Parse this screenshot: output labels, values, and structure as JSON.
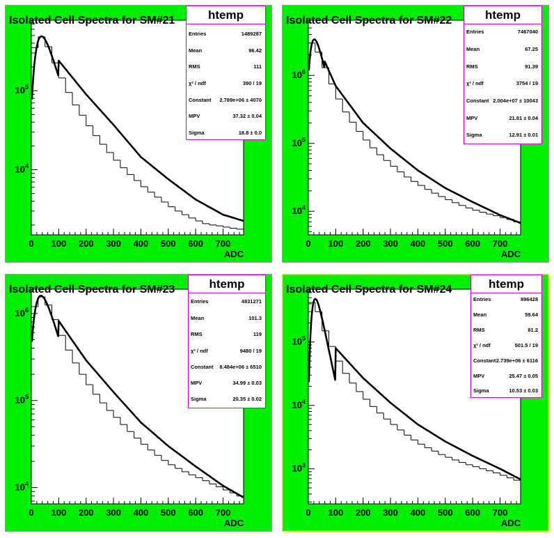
{
  "colors": {
    "pad_fill": "#00ee00",
    "stats_border": "#d000d0",
    "frame": "#000000",
    "highlight_border": "#e8e000"
  },
  "chart_data": [
    {
      "type": "histogram",
      "title": "Isolated Cell Spectra for SM#21",
      "xlabel": "ADC",
      "ylabel": "",
      "xlim": [
        0,
        775
      ],
      "ylim": [
        1500,
        780000
      ],
      "y_scale": "log",
      "x_ticks": [
        "0",
        "100",
        "200",
        "300",
        "400",
        "500",
        "600",
        "700"
      ],
      "y_tick_labels": [
        {
          "base": "10",
          "exp": "4",
          "value": 10000
        },
        {
          "base": "10",
          "exp": "5",
          "value": 100000
        }
      ],
      "bins": {
        "x0": 0,
        "width": 25,
        "values": [
          350000,
          480000,
          360000,
          225000,
          145000,
          95000,
          66000,
          49000,
          36000,
          27000,
          21000,
          16500,
          13200,
          10600,
          8700,
          7300,
          6100,
          5200,
          4500,
          3900,
          3400,
          3000,
          2700,
          2450,
          2250,
          2080,
          2000,
          1950,
          1880,
          1820,
          1770
        ]
      },
      "fit": {
        "name": "Landau",
        "mpv": 37.32,
        "sigma": 18.8,
        "amp": 488000,
        "tail": [
          [
            100,
            240000
          ],
          [
            200,
            90000
          ],
          [
            300,
            37000
          ],
          [
            400,
            14500
          ],
          [
            500,
            7600
          ],
          [
            600,
            4200
          ],
          [
            700,
            2700
          ],
          [
            775,
            2250
          ]
        ]
      },
      "stats": {
        "title": "htemp",
        "rows": [
          {
            "k": "Entries",
            "v": "1489287"
          },
          {
            "k": "Mean",
            "v": "96.42"
          },
          {
            "k": "RMS",
            "v": "111"
          },
          {
            "k": "χ² / ndf",
            "v": "390 / 19"
          },
          {
            "k": "Constant",
            "v": "2.789e+06 ± 4070"
          },
          {
            "k": "MPV",
            "v": "37.32 ± 0.04"
          },
          {
            "k": "Sigma",
            "v": "18.8 ± 0.0"
          }
        ]
      }
    },
    {
      "type": "histogram",
      "title": "Isolated Cell Spectra for SM#22",
      "xlabel": "ADC",
      "ylabel": "",
      "xlim": [
        0,
        775
      ],
      "ylim": [
        4500,
        6500000
      ],
      "y_scale": "log",
      "x_ticks": [
        "0",
        "100",
        "200",
        "300",
        "400",
        "500",
        "600",
        "700"
      ],
      "y_tick_labels": [
        {
          "base": "10",
          "exp": "4",
          "value": 10000
        },
        {
          "base": "10",
          "exp": "5",
          "value": 100000
        },
        {
          "base": "10",
          "exp": "6",
          "value": 1000000
        }
      ],
      "bins": {
        "x0": 0,
        "width": 25,
        "values": [
          3000000,
          2200000,
          1300000,
          750000,
          450000,
          290000,
          205000,
          150000,
          112000,
          86000,
          68000,
          56000,
          46000,
          38000,
          32000,
          27500,
          24000,
          21000,
          18500,
          16500,
          14800,
          13400,
          12200,
          11200,
          10400,
          9700,
          9100,
          8600,
          8100,
          7600,
          7000
        ]
      },
      "fit": {
        "name": "Landau",
        "mpv": 21.81,
        "sigma": 12.91,
        "amp": 3400000,
        "tail": [
          [
            60,
            1600000
          ],
          [
            100,
            700000
          ],
          [
            200,
            200000
          ],
          [
            300,
            84000
          ],
          [
            400,
            40000
          ],
          [
            500,
            22000
          ],
          [
            600,
            13700
          ],
          [
            700,
            8800
          ],
          [
            775,
            6700
          ]
        ]
      },
      "stats": {
        "title": "htemp",
        "rows": [
          {
            "k": "Entries",
            "v": "7467040"
          },
          {
            "k": "Mean",
            "v": "67.25"
          },
          {
            "k": "RMS",
            "v": "91.39"
          },
          {
            "k": "χ² / ndf",
            "v": "3754 / 19"
          },
          {
            "k": "Constant",
            "v": "2.004e+07 ± 10043"
          },
          {
            "k": "MPV",
            "v": "21.81 ± 0.04"
          },
          {
            "k": "Sigma",
            "v": "12.91 ± 0.01"
          }
        ]
      }
    },
    {
      "type": "histogram",
      "title": "Isolated Cell Spectra for SM#23",
      "xlabel": "ADC",
      "ylabel": "",
      "xlim": [
        0,
        775
      ],
      "ylim": [
        6500,
        1900000
      ],
      "y_scale": "log",
      "x_ticks": [
        "0",
        "100",
        "200",
        "300",
        "400",
        "500",
        "600",
        "700"
      ],
      "y_tick_labels": [
        {
          "base": "10",
          "exp": "4",
          "value": 10000
        },
        {
          "base": "10",
          "exp": "5",
          "value": 100000
        },
        {
          "base": "10",
          "exp": "6",
          "value": 1000000
        }
      ],
      "bins": {
        "x0": 0,
        "width": 25,
        "values": [
          1200000,
          1550000,
          1250000,
          850000,
          560000,
          380000,
          270000,
          200000,
          152000,
          118000,
          94000,
          77000,
          64000,
          53000,
          44000,
          37000,
          31500,
          27000,
          23500,
          20500,
          18300,
          16600,
          15200,
          14000,
          13000,
          12000,
          11000,
          10200,
          9400,
          8700,
          8000
        ]
      },
      "fit": {
        "name": "Landau",
        "mpv": 34.99,
        "sigma": 20.35,
        "amp": 1600000,
        "tail": [
          [
            100,
            820000
          ],
          [
            200,
            290000
          ],
          [
            300,
            125000
          ],
          [
            400,
            56000
          ],
          [
            500,
            30000
          ],
          [
            600,
            17500
          ],
          [
            700,
            10500
          ],
          [
            775,
            7700
          ]
        ]
      },
      "stats": {
        "title": "htemp",
        "rows": [
          {
            "k": "Entries",
            "v": "4831271"
          },
          {
            "k": "Mean",
            "v": "101.3"
          },
          {
            "k": "RMS",
            "v": "119"
          },
          {
            "k": "χ² / ndf",
            "v": "9480 / 19"
          },
          {
            "k": "Constant",
            "v": "8.484e+06 ± 6510"
          },
          {
            "k": "MPV",
            "v": "34.99 ± 0.03"
          },
          {
            "k": "Sigma",
            "v": "20.35 ± 0.02"
          }
        ]
      }
    },
    {
      "type": "histogram",
      "title": "Isolated Cell Spectra for SM#24",
      "xlabel": "ADC",
      "ylabel": "",
      "xlim": [
        0,
        775
      ],
      "ylim": [
        280,
        680000
      ],
      "y_scale": "log",
      "x_ticks": [
        "0",
        "100",
        "200",
        "300",
        "400",
        "500",
        "600",
        "700"
      ],
      "y_tick_labels": [
        {
          "base": "10",
          "exp": "3",
          "value": 1000
        },
        {
          "base": "10",
          "exp": "4",
          "value": 10000
        },
        {
          "base": "10",
          "exp": "5",
          "value": 100000
        }
      ],
      "bins": {
        "x0": 0,
        "width": 25,
        "values": [
          420000,
          300000,
          150000,
          85000,
          50000,
          32000,
          22500,
          16500,
          12500,
          9600,
          7600,
          6100,
          5000,
          4100,
          3400,
          2850,
          2450,
          2150,
          1900,
          1680,
          1520,
          1380,
          1260,
          1160,
          1080,
          1000,
          930,
          860,
          790,
          720,
          660
        ]
      },
      "fit": {
        "name": "Landau",
        "mpv": 25.47,
        "sigma": 10.53,
        "amp": 480000,
        "tail": [
          [
            100,
            80000
          ],
          [
            200,
            27000
          ],
          [
            300,
            11000
          ],
          [
            400,
            5000
          ],
          [
            500,
            2700
          ],
          [
            600,
            1600
          ],
          [
            700,
            1000
          ],
          [
            775,
            680
          ]
        ]
      },
      "stats": {
        "title": "htemp",
        "rows": [
          {
            "k": "Entries",
            "v": "896428"
          },
          {
            "k": "Mean",
            "v": "59.64"
          },
          {
            "k": "RMS",
            "v": "81.2"
          },
          {
            "k": "χ² / ndf",
            "v": "501.5 / 19"
          },
          {
            "k": "Constant",
            "v": "2.739e+06 ± 6116"
          },
          {
            "k": "MPV",
            "v": "25.47 ± 0.05"
          },
          {
            "k": "Sigma",
            "v": "10.53 ± 0.03"
          }
        ]
      }
    }
  ]
}
